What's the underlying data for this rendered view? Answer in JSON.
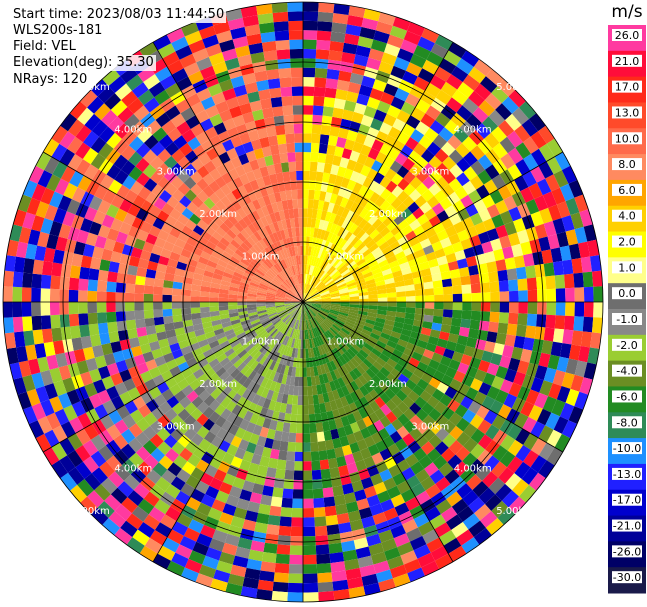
{
  "info": {
    "start_time": "Start time: 2023/08/03 11:44:50",
    "instrument": "WLS200s-181",
    "field": "Field: VEL",
    "elevation": "Elevation(deg): 35.30",
    "nrays": "NRays: 120"
  },
  "colorbar": {
    "unit": "m/s",
    "ticks": [
      "26.0",
      "21.0",
      "17.0",
      "13.0",
      "10.0",
      "8.0",
      "6.0",
      "4.0",
      "2.0",
      "1.0",
      "0.0",
      "-1.0",
      "-2.0",
      "-4.0",
      "-6.0",
      "-8.0",
      "-10.0",
      "-13.0",
      "-17.0",
      "-21.0",
      "-26.0",
      "-30.0"
    ],
    "colors": [
      "#ff3aa0",
      "#ff0d3a",
      "#ff2a1a",
      "#ff4a2a",
      "#ff6a4a",
      "#ff8a60",
      "#ffa500",
      "#ffd000",
      "#ffff00",
      "#ffff8a",
      "#6e6e6e",
      "#888888",
      "#9acd32",
      "#6b8e23",
      "#228b22",
      "#2e8b57",
      "#1e90ff",
      "#2020ff",
      "#0000cd",
      "#000099",
      "#000066",
      "#1a1a4a"
    ]
  },
  "chart_data": {
    "type": "ppi_radar",
    "field": "VEL",
    "units": "m/s",
    "nrays": 120,
    "elevation_deg": 35.3,
    "range_rings_km": [
      1.0,
      2.0,
      3.0,
      4.0,
      5.0
    ],
    "ring_labels": [
      "1.00km",
      "2.00km",
      "3.00km",
      "4.00km",
      "5.00km"
    ],
    "max_range_km": 5.0,
    "colorbar_range": [
      -30.0,
      26.0
    ],
    "sectors": [
      {
        "azimuth_range_deg": [
          270,
          360
        ],
        "description": "positive velocities",
        "approx_value": 8.0
      },
      {
        "azimuth_range_deg": [
          0,
          90
        ],
        "description": "positive velocities",
        "approx_value": 2.0
      },
      {
        "azimuth_range_deg": [
          90,
          180
        ],
        "description": "negative velocities",
        "approx_value": -6.0
      },
      {
        "azimuth_range_deg": [
          180,
          270
        ],
        "description": "mixed near-zero velocities",
        "approx_value": -2.0
      }
    ]
  }
}
